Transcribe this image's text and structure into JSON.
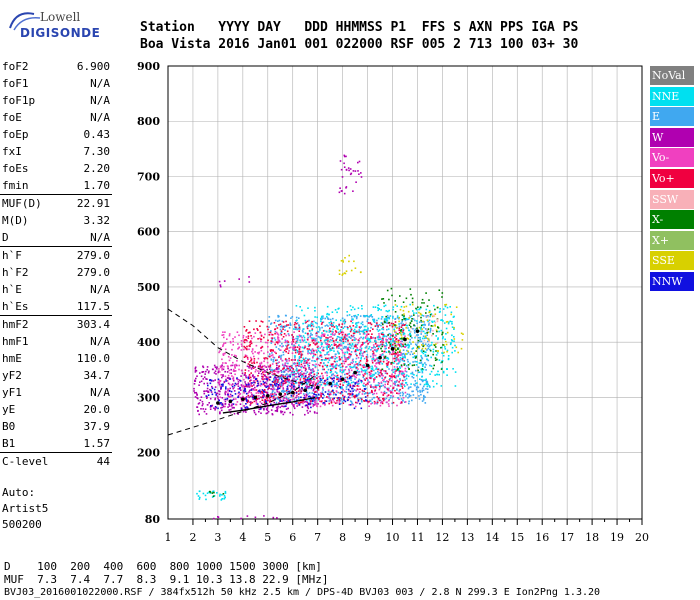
{
  "logo": {
    "line1": "Lowell",
    "line2": "DIGISONDE"
  },
  "header": {
    "row1": "Station   YYYY DAY   DDD HHMMSS P1  FFS S AXN PPS IGA PS",
    "row2": "Boa Vista 2016 Jan01 001 022000 RSF 005 2 713 100 03+ 30"
  },
  "params": [
    {
      "label": "foF2",
      "value": "6.900",
      "sep": false
    },
    {
      "label": "foF1",
      "value": "N/A",
      "sep": false
    },
    {
      "label": "foF1p",
      "value": "N/A",
      "sep": false
    },
    {
      "label": "foE",
      "value": "N/A",
      "sep": false
    },
    {
      "label": "foEp",
      "value": "0.43",
      "sep": false
    },
    {
      "label": "fxI",
      "value": "7.30",
      "sep": false
    },
    {
      "label": "foEs",
      "value": "2.20",
      "sep": false
    },
    {
      "label": "fmin",
      "value": "1.70",
      "sep": false
    },
    {
      "label": "MUF(D)",
      "value": "22.91",
      "sep": true
    },
    {
      "label": "M(D)",
      "value": "3.32",
      "sep": false
    },
    {
      "label": "D",
      "value": "N/A",
      "sep": false
    },
    {
      "label": "h`F",
      "value": "279.0",
      "sep": true
    },
    {
      "label": "h`F2",
      "value": "279.0",
      "sep": false
    },
    {
      "label": "h`E",
      "value": "N/A",
      "sep": false
    },
    {
      "label": "h`Es",
      "value": "117.5",
      "sep": false
    },
    {
      "label": "hmF2",
      "value": "303.4",
      "sep": true
    },
    {
      "label": "hmF1",
      "value": "N/A",
      "sep": false
    },
    {
      "label": "hmE",
      "value": "110.0",
      "sep": false
    },
    {
      "label": "yF2",
      "value": "34.7",
      "sep": false
    },
    {
      "label": "yF1",
      "value": "N/A",
      "sep": false
    },
    {
      "label": "yE",
      "value": "20.0",
      "sep": false
    },
    {
      "label": "B0",
      "value": "37.9",
      "sep": false
    },
    {
      "label": "B1",
      "value": "1.57",
      "sep": false
    },
    {
      "label": "C-level",
      "value": "44",
      "sep": true
    }
  ],
  "auto": {
    "line1": "Auto:",
    "line2": "Artist5",
    "line3": "500200"
  },
  "legend": [
    {
      "name": "NoVal",
      "color": "#808080"
    },
    {
      "name": "NNE",
      "color": "#00e0f0"
    },
    {
      "name": "E",
      "color": "#40a8f0"
    },
    {
      "name": "W",
      "color": "#b000b0"
    },
    {
      "name": "Vo-",
      "color": "#f040c0"
    },
    {
      "name": "Vo+",
      "color": "#f00040"
    },
    {
      "name": "SSW",
      "color": "#f8b0b8"
    },
    {
      "name": "X-",
      "color": "#008000"
    },
    {
      "name": "X+",
      "color": "#90c060"
    },
    {
      "name": "SSE",
      "color": "#d8d000"
    },
    {
      "name": "NNW",
      "color": "#1010e0"
    }
  ],
  "chart_data": {
    "type": "scatter",
    "xlim": [
      1,
      20
    ],
    "ylim": [
      80,
      900
    ],
    "x_ticks": [
      "1",
      "2",
      "3",
      "4",
      "5",
      "6",
      "7",
      "8",
      "9",
      "10",
      "11",
      "12",
      "13",
      "14",
      "15",
      "16",
      "17",
      "18",
      "19",
      "20"
    ],
    "y_ticks": [
      "80",
      "200",
      "300",
      "400",
      "500",
      "600",
      "700",
      "800",
      "900"
    ],
    "grid": true,
    "clusters": [
      {
        "series": "W",
        "x": [
          2.0,
          7.0
        ],
        "y": [
          270,
          360
        ],
        "density": 0.55
      },
      {
        "series": "E",
        "x": [
          5.0,
          11.5
        ],
        "y": [
          290,
          450
        ],
        "density": 0.45
      },
      {
        "series": "Vo-",
        "x": [
          3.0,
          10.5
        ],
        "y": [
          285,
          420
        ],
        "density": 0.35
      },
      {
        "series": "Vo+",
        "x": [
          4.0,
          10.5
        ],
        "y": [
          290,
          440
        ],
        "density": 0.3
      },
      {
        "series": "NNW",
        "x": [
          2.5,
          9.0
        ],
        "y": [
          280,
          340
        ],
        "density": 0.25
      },
      {
        "series": "NNE",
        "x": [
          6.0,
          12.5
        ],
        "y": [
          320,
          470
        ],
        "density": 0.25
      },
      {
        "series": "SSE",
        "x": [
          10.0,
          12.8
        ],
        "y": [
          380,
          470
        ],
        "density": 0.15
      },
      {
        "series": "X-",
        "x": [
          9.5,
          12.0
        ],
        "y": [
          350,
          500
        ],
        "density": 0.15
      },
      {
        "series": "SSW",
        "x": [
          10.5,
          11.8
        ],
        "y": [
          400,
          450
        ],
        "density": 0.15
      },
      {
        "series": "W",
        "x": [
          7.8,
          8.8
        ],
        "y": [
          670,
          740
        ],
        "density": 0.2
      },
      {
        "series": "NNE",
        "x": [
          2.1,
          3.3
        ],
        "y": [
          115,
          132
        ],
        "density": 0.6
      },
      {
        "series": "X-",
        "x": [
          2.5,
          3.2
        ],
        "y": [
          122,
          132
        ],
        "density": 0.4
      },
      {
        "series": "W",
        "x": [
          2.8,
          6.0
        ],
        "y": [
          82,
          88
        ],
        "density": 0.2
      },
      {
        "series": "SSE",
        "x": [
          7.8,
          8.8
        ],
        "y": [
          520,
          560
        ],
        "density": 0.2
      },
      {
        "series": "W",
        "x": [
          3.0,
          4.5
        ],
        "y": [
          500,
          520
        ],
        "density": 0.1
      }
    ],
    "trace_solid": [
      [
        3.2,
        272
      ],
      [
        4.0,
        277
      ],
      [
        5.0,
        285
      ],
      [
        6.0,
        292
      ],
      [
        6.9,
        300
      ]
    ],
    "trace_dashed": [
      [
        1.0,
        232
      ],
      [
        3.0,
        260
      ],
      [
        4.0,
        275
      ],
      [
        5.0,
        290
      ],
      [
        6.0,
        310
      ],
      [
        6.9,
        340
      ]
    ],
    "trace_dashed2": [
      [
        1.0,
        460
      ],
      [
        2.0,
        430
      ],
      [
        3.0,
        390
      ],
      [
        4.0,
        365
      ],
      [
        5.0,
        345
      ],
      [
        6.0,
        330
      ],
      [
        6.9,
        320
      ]
    ],
    "trace_points": [
      [
        3.0,
        290
      ],
      [
        3.5,
        293
      ],
      [
        4.0,
        297
      ],
      [
        4.5,
        300
      ],
      [
        5.0,
        303
      ],
      [
        5.5,
        306
      ],
      [
        6.0,
        309
      ],
      [
        6.5,
        313
      ],
      [
        7.0,
        318
      ],
      [
        7.5,
        325
      ],
      [
        8.0,
        333
      ],
      [
        8.5,
        345
      ],
      [
        9.0,
        358
      ],
      [
        9.5,
        372
      ],
      [
        10.0,
        388
      ],
      [
        10.5,
        405
      ],
      [
        11.0,
        420
      ]
    ]
  },
  "bottom": {
    "row1": "D    100  200  400  600  800 1000 1500 3000 [km]",
    "row2": "MUF  7.3  7.4  7.7  8.3  9.1 10.3 13.8 22.9 [MHz]",
    "row3": "BVJ03_2016001022000.RSF / 384fx512h 50 kHz 2.5 km / DPS-4D BVJ03 003 / 2.8 N 299.3 E Ion2Png 1.3.20"
  }
}
